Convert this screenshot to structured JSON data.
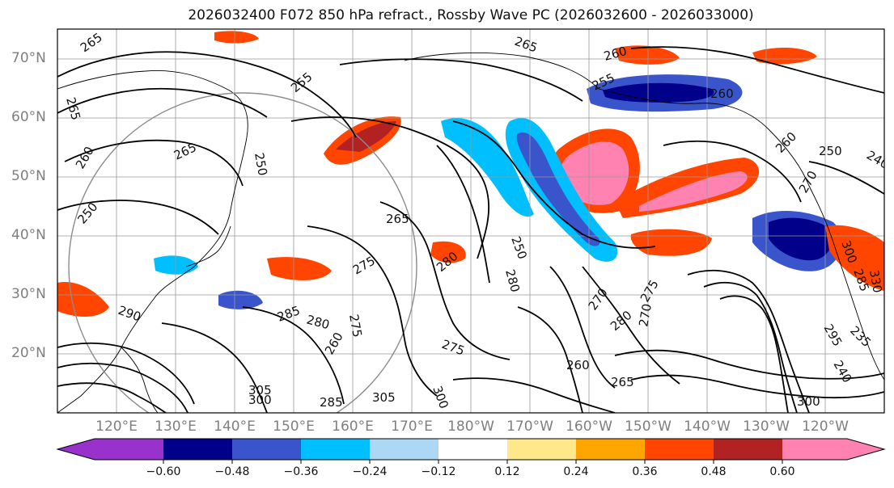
{
  "title": "2026032400 F072 850 hPa refract., Rossby Wave PC (2026032600 - 2026033000)",
  "latitude_labels": [
    "70°N",
    "60°N",
    "50°N",
    "40°N",
    "30°N",
    "20°N"
  ],
  "longitude_labels": [
    "120°E",
    "130°E",
    "140°E",
    "150°E",
    "160°E",
    "170°E",
    "180°W",
    "170°W",
    "160°W",
    "150°W",
    "140°W",
    "130°W",
    "120°W"
  ],
  "colorbar": {
    "tick_labels": [
      "−0.60",
      "−0.48",
      "−0.36",
      "−0.24",
      "−0.12",
      "0.12",
      "0.24",
      "0.36",
      "0.48",
      "0.60"
    ],
    "colors": [
      "#9932cc",
      "#00008b",
      "#3a55cc",
      "#00bfff",
      "#add8f5",
      "#ffffff",
      "#ffe88a",
      "#ffa500",
      "#ff4500",
      "#b22222",
      "#ff82b0"
    ]
  },
  "contour_labels": [
    "265",
    "255",
    "260",
    "265",
    "260",
    "255",
    "265",
    "260",
    "250",
    "265",
    "265",
    "280",
    "275",
    "250",
    "250",
    "280",
    "290",
    "285",
    "280",
    "275",
    "260",
    "270",
    "275",
    "280",
    "270",
    "275",
    "260",
    "265",
    "305",
    "300",
    "285",
    "300",
    "305",
    "300",
    "295",
    "260",
    "250",
    "240",
    "300",
    "285",
    "270",
    "240",
    "235",
    "330"
  ],
  "colors": {
    "coast": "#000000",
    "grid": "#999999",
    "contour": "#000000"
  }
}
